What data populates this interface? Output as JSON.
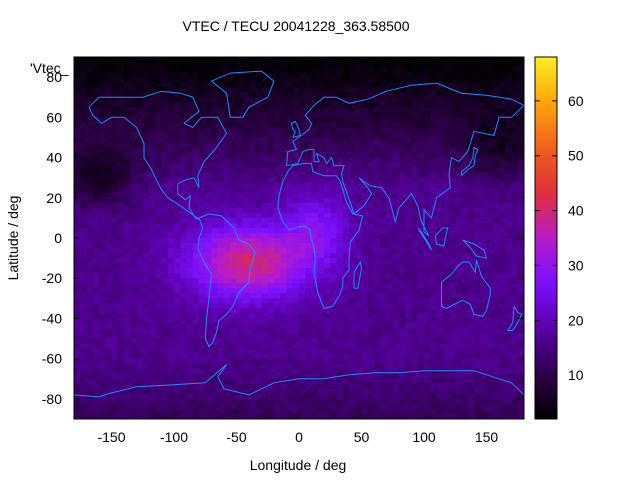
{
  "chart_data": {
    "type": "heatmap",
    "title": "VTEC / TECU 20041228_363.58500",
    "xlabel": "Longitude / deg",
    "ylabel": "Latitude / deg",
    "series_label": "'Vtec_",
    "xlim": [
      -180,
      180
    ],
    "ylim": [
      -90,
      90
    ],
    "x_ticks": [
      -150,
      -100,
      -50,
      0,
      50,
      100,
      150
    ],
    "y_ticks": [
      -80,
      -60,
      -40,
      -20,
      0,
      20,
      40,
      60,
      80
    ],
    "colorbar": {
      "range": [
        2,
        68
      ],
      "ticks": [
        10,
        20,
        30,
        40,
        50,
        60
      ],
      "palette": [
        "#000000",
        "#2e004a",
        "#5a00a8",
        "#7a10ff",
        "#b71cc8",
        "#e0303a",
        "#f0601c",
        "#fca40c",
        "#fff020"
      ]
    },
    "grid_resolution_deg": {
      "lon": 5,
      "lat": 2.5
    },
    "tec_features": {
      "background_tecu": 16,
      "peak_region": {
        "lon_center": -40,
        "lat_center": -12,
        "peak_tecu": 40
      },
      "polar_low_north_tecu": 6,
      "mid_lat_trough_tecu": 4
    },
    "coastline_color": "#1e8cff"
  }
}
